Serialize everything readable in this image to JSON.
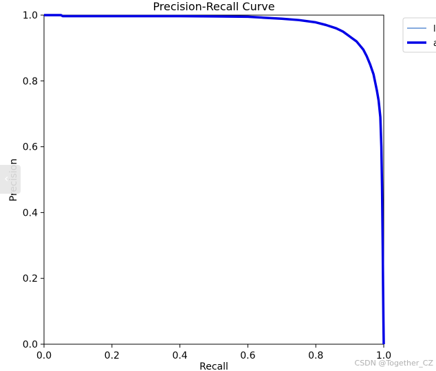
{
  "chart_data": {
    "type": "line",
    "title": "Precision-Recall Curve",
    "xlabel": "Recall",
    "ylabel": "Precision",
    "xlim": [
      0.0,
      1.0
    ],
    "ylim": [
      0.0,
      1.0
    ],
    "xticks": [
      "0.0",
      "0.2",
      "0.4",
      "0.6",
      "0.8",
      "1.0"
    ],
    "yticks": [
      "0.0",
      "0.2",
      "0.4",
      "0.6",
      "0.8",
      "1.0"
    ],
    "grid": false,
    "legend_position": "outside-top-right",
    "series": [
      {
        "name": "l",
        "color": "#3a78c9",
        "style": "thin",
        "x": [
          0.0,
          0.05,
          0.055,
          0.2,
          0.4,
          0.5,
          0.6,
          0.65,
          0.7,
          0.75,
          0.8,
          0.83,
          0.86,
          0.88,
          0.9,
          0.92,
          0.94,
          0.95,
          0.96,
          0.97,
          0.975,
          0.98,
          0.985,
          0.99,
          0.993,
          0.995,
          0.997,
          0.998,
          0.999,
          1.0
        ],
        "y": [
          1.0,
          1.0,
          0.997,
          0.997,
          0.997,
          0.996,
          0.995,
          0.992,
          0.989,
          0.985,
          0.978,
          0.97,
          0.96,
          0.95,
          0.935,
          0.92,
          0.895,
          0.875,
          0.85,
          0.82,
          0.795,
          0.77,
          0.74,
          0.69,
          0.6,
          0.48,
          0.3,
          0.18,
          0.08,
          0.0
        ]
      },
      {
        "name": "a",
        "color": "#0000e6",
        "style": "thick",
        "x": [
          0.0,
          0.05,
          0.055,
          0.2,
          0.4,
          0.5,
          0.6,
          0.65,
          0.7,
          0.75,
          0.8,
          0.83,
          0.86,
          0.88,
          0.9,
          0.92,
          0.94,
          0.95,
          0.96,
          0.97,
          0.975,
          0.98,
          0.985,
          0.99,
          0.993,
          0.995,
          0.997,
          0.998,
          0.999,
          1.0
        ],
        "y": [
          1.0,
          1.0,
          0.997,
          0.997,
          0.997,
          0.996,
          0.995,
          0.992,
          0.989,
          0.985,
          0.978,
          0.97,
          0.96,
          0.95,
          0.935,
          0.92,
          0.895,
          0.875,
          0.85,
          0.82,
          0.795,
          0.77,
          0.74,
          0.69,
          0.6,
          0.48,
          0.3,
          0.18,
          0.08,
          0.0
        ]
      }
    ]
  },
  "watermark": "CSDN @Together_CZ",
  "side_tab_icon": "chevron-left-icon"
}
